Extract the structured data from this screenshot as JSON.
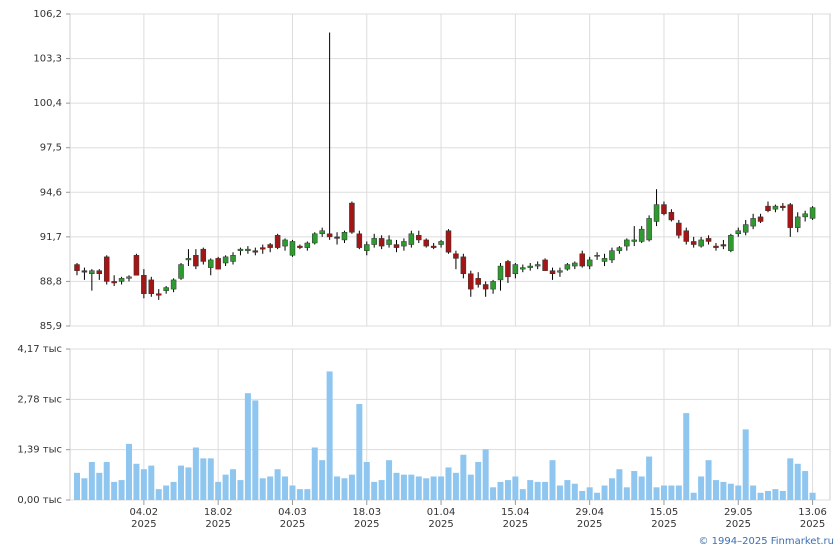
{
  "chart_data": [
    {
      "type": "candlestick",
      "up_color": "#2f9a2f",
      "down_color": "#a31616",
      "grid": true,
      "ylim": [
        85.9,
        106.2
      ],
      "yticks": [
        {
          "value": 85.9,
          "label": "85,9"
        },
        {
          "value": 88.8,
          "label": "88,8"
        },
        {
          "value": 91.7,
          "label": "91,7"
        },
        {
          "value": 94.6,
          "label": "94,6"
        },
        {
          "value": 97.5,
          "label": "97,5"
        },
        {
          "value": 100.4,
          "label": "100,4"
        },
        {
          "value": 103.3,
          "label": "103,3"
        },
        {
          "value": 106.2,
          "label": "106,2"
        }
      ],
      "ohlc": [
        [
          89.9,
          90.0,
          89.2,
          89.5
        ],
        [
          89.5,
          89.7,
          88.9,
          89.4
        ],
        [
          89.3,
          89.6,
          88.2,
          89.5
        ],
        [
          89.5,
          89.6,
          88.9,
          89.3
        ],
        [
          90.4,
          90.5,
          88.6,
          88.8
        ],
        [
          88.8,
          89.2,
          88.5,
          88.7
        ],
        [
          88.8,
          89.1,
          88.6,
          89.0
        ],
        [
          89.0,
          89.2,
          88.8,
          89.1
        ],
        [
          90.5,
          90.6,
          89.2,
          89.2
        ],
        [
          89.2,
          89.6,
          87.7,
          88.0
        ],
        [
          88.9,
          89.1,
          87.8,
          88.0
        ],
        [
          88.0,
          88.3,
          87.6,
          87.9
        ],
        [
          88.2,
          88.5,
          88.0,
          88.4
        ],
        [
          88.3,
          89.0,
          88.1,
          88.9
        ],
        [
          89.0,
          90.0,
          88.9,
          89.9
        ],
        [
          90.2,
          90.9,
          89.8,
          90.3
        ],
        [
          90.5,
          90.9,
          89.6,
          89.8
        ],
        [
          90.9,
          91.0,
          89.9,
          90.1
        ],
        [
          89.7,
          90.3,
          89.2,
          90.2
        ],
        [
          90.3,
          90.4,
          89.6,
          89.6
        ],
        [
          90.0,
          90.5,
          89.8,
          90.4
        ],
        [
          90.1,
          90.7,
          89.9,
          90.5
        ],
        [
          90.8,
          91.0,
          90.5,
          90.9
        ],
        [
          90.8,
          91.1,
          90.6,
          90.9
        ],
        [
          90.8,
          91.0,
          90.5,
          90.7
        ],
        [
          91.0,
          91.2,
          90.6,
          90.9
        ],
        [
          91.2,
          91.3,
          90.7,
          91.0
        ],
        [
          91.8,
          91.9,
          90.9,
          91.0
        ],
        [
          91.1,
          91.6,
          90.8,
          91.5
        ],
        [
          90.5,
          91.5,
          90.4,
          91.4
        ],
        [
          91.1,
          91.2,
          90.9,
          91.0
        ],
        [
          91.0,
          91.4,
          90.8,
          91.3
        ],
        [
          91.3,
          92.0,
          91.2,
          91.9
        ],
        [
          91.9,
          92.3,
          91.7,
          92.1
        ],
        [
          91.9,
          105.0,
          91.5,
          91.7
        ],
        [
          91.7,
          92.0,
          91.2,
          91.6
        ],
        [
          91.5,
          92.1,
          91.3,
          92.0
        ],
        [
          93.9,
          94.0,
          91.9,
          92.0
        ],
        [
          91.9,
          92.1,
          90.9,
          91.0
        ],
        [
          90.8,
          91.4,
          90.5,
          91.2
        ],
        [
          91.2,
          91.9,
          91.0,
          91.6
        ],
        [
          91.6,
          91.8,
          90.9,
          91.1
        ],
        [
          91.2,
          91.8,
          91.0,
          91.5
        ],
        [
          91.2,
          91.5,
          90.7,
          91.0
        ],
        [
          91.1,
          91.6,
          90.8,
          91.4
        ],
        [
          91.2,
          92.1,
          91.0,
          91.9
        ],
        [
          91.8,
          92.1,
          91.3,
          91.5
        ],
        [
          91.5,
          91.6,
          91.0,
          91.1
        ],
        [
          91.1,
          91.3,
          90.9,
          91.0
        ],
        [
          91.2,
          91.5,
          91.0,
          91.4
        ],
        [
          92.1,
          92.2,
          90.6,
          90.7
        ],
        [
          90.6,
          90.8,
          89.6,
          90.3
        ],
        [
          90.4,
          90.6,
          89.0,
          89.3
        ],
        [
          89.3,
          89.5,
          87.8,
          88.3
        ],
        [
          89.0,
          89.4,
          88.4,
          88.6
        ],
        [
          88.6,
          88.8,
          87.8,
          88.3
        ],
        [
          88.3,
          88.9,
          88.0,
          88.8
        ],
        [
          88.9,
          90.0,
          88.2,
          89.8
        ],
        [
          90.1,
          90.2,
          88.7,
          89.1
        ],
        [
          89.3,
          90.0,
          89.0,
          89.9
        ],
        [
          89.6,
          89.9,
          89.4,
          89.7
        ],
        [
          89.7,
          90.0,
          89.5,
          89.8
        ],
        [
          89.8,
          90.1,
          89.6,
          89.9
        ],
        [
          90.2,
          90.3,
          89.5,
          89.5
        ],
        [
          89.5,
          89.7,
          88.9,
          89.3
        ],
        [
          89.4,
          89.7,
          89.1,
          89.5
        ],
        [
          89.6,
          90.0,
          89.5,
          89.9
        ],
        [
          89.8,
          90.1,
          89.6,
          90.0
        ],
        [
          90.6,
          90.8,
          89.7,
          89.8
        ],
        [
          89.8,
          90.4,
          89.6,
          90.2
        ],
        [
          90.5,
          90.7,
          90.2,
          90.5
        ],
        [
          90.1,
          90.6,
          89.8,
          90.3
        ],
        [
          90.2,
          91.0,
          90.0,
          90.8
        ],
        [
          90.8,
          91.1,
          90.6,
          91.0
        ],
        [
          91.1,
          91.6,
          90.8,
          91.5
        ],
        [
          91.4,
          92.4,
          91.1,
          91.5
        ],
        [
          91.4,
          92.4,
          91.3,
          92.2
        ],
        [
          91.5,
          93.1,
          91.4,
          92.9
        ],
        [
          92.7,
          94.8,
          92.4,
          93.8
        ],
        [
          93.8,
          94.0,
          93.1,
          93.2
        ],
        [
          93.3,
          93.5,
          92.7,
          92.8
        ],
        [
          92.6,
          92.8,
          91.6,
          91.8
        ],
        [
          92.1,
          92.3,
          91.2,
          91.4
        ],
        [
          91.4,
          91.7,
          91.0,
          91.2
        ],
        [
          91.1,
          91.7,
          91.0,
          91.5
        ],
        [
          91.6,
          91.8,
          91.2,
          91.4
        ],
        [
          91.1,
          91.3,
          90.8,
          91.0
        ],
        [
          91.2,
          91.5,
          90.9,
          91.1
        ],
        [
          90.8,
          91.9,
          90.7,
          91.8
        ],
        [
          91.9,
          92.3,
          91.7,
          92.1
        ],
        [
          92.0,
          92.8,
          91.8,
          92.5
        ],
        [
          92.4,
          93.2,
          92.2,
          92.9
        ],
        [
          93.0,
          93.2,
          92.6,
          92.7
        ],
        [
          93.7,
          94.0,
          93.3,
          93.4
        ],
        [
          93.5,
          93.8,
          93.3,
          93.7
        ],
        [
          93.7,
          93.9,
          93.4,
          93.6
        ],
        [
          93.8,
          93.9,
          91.7,
          92.3
        ],
        [
          92.3,
          93.3,
          92.0,
          93.0
        ],
        [
          93.0,
          93.4,
          92.7,
          93.2
        ],
        [
          92.9,
          93.7,
          92.8,
          93.6
        ]
      ]
    },
    {
      "type": "bar",
      "color": "#8ec6f0",
      "grid": true,
      "ylim": [
        0,
        4.17
      ],
      "yticks": [
        {
          "value": 0,
          "label": "0,00 тыс"
        },
        {
          "value": 1.39,
          "label": "1,39 тыс"
        },
        {
          "value": 2.78,
          "label": "2,78 тыс"
        },
        {
          "value": 4.17,
          "label": "4,17 тыс"
        }
      ],
      "categories": [
        null,
        null,
        null,
        null,
        null,
        null,
        null,
        null,
        null,
        "04.02\n2025",
        null,
        null,
        null,
        null,
        null,
        null,
        null,
        null,
        null,
        "18.02\n2025",
        null,
        null,
        null,
        null,
        null,
        null,
        null,
        null,
        null,
        "04.03\n2025",
        null,
        null,
        null,
        null,
        null,
        null,
        null,
        null,
        null,
        "18.03\n2025",
        null,
        null,
        null,
        null,
        null,
        null,
        null,
        null,
        null,
        "01.04\n2025",
        null,
        null,
        null,
        null,
        null,
        null,
        null,
        null,
        null,
        "15.04\n2025",
        null,
        null,
        null,
        null,
        null,
        null,
        null,
        null,
        null,
        "29.04\n2025",
        null,
        null,
        null,
        null,
        null,
        null,
        null,
        null,
        null,
        "15.05\n2025",
        null,
        null,
        null,
        null,
        null,
        null,
        null,
        null,
        null,
        "29.05\n2025",
        null,
        null,
        null,
        null,
        null,
        null,
        null,
        null,
        null,
        "13.06\n2025"
      ],
      "values": [
        0.75,
        0.6,
        1.05,
        0.75,
        1.05,
        0.5,
        0.55,
        1.55,
        1.0,
        0.85,
        0.95,
        0.3,
        0.4,
        0.5,
        0.95,
        0.9,
        1.45,
        1.15,
        1.15,
        0.5,
        0.7,
        0.85,
        0.55,
        2.95,
        2.75,
        0.6,
        0.65,
        0.85,
        0.65,
        0.4,
        0.3,
        0.3,
        1.45,
        1.1,
        3.55,
        0.65,
        0.6,
        0.7,
        2.65,
        1.05,
        0.5,
        0.55,
        1.1,
        0.75,
        0.7,
        0.7,
        0.65,
        0.6,
        0.65,
        0.65,
        0.9,
        0.75,
        1.25,
        0.7,
        1.05,
        1.4,
        0.35,
        0.5,
        0.55,
        0.65,
        0.3,
        0.55,
        0.5,
        0.5,
        1.1,
        0.4,
        0.55,
        0.45,
        0.25,
        0.35,
        0.2,
        0.4,
        0.6,
        0.85,
        0.35,
        0.8,
        0.65,
        1.2,
        0.35,
        0.4,
        0.4,
        0.4,
        2.4,
        0.2,
        0.65,
        1.1,
        0.55,
        0.5,
        0.45,
        0.4,
        1.95,
        0.4,
        0.2,
        0.25,
        0.3,
        0.25,
        1.15,
        1.0,
        0.8,
        0.2
      ]
    }
  ],
  "footer": "© 1994–2025 Finmarket.ru"
}
